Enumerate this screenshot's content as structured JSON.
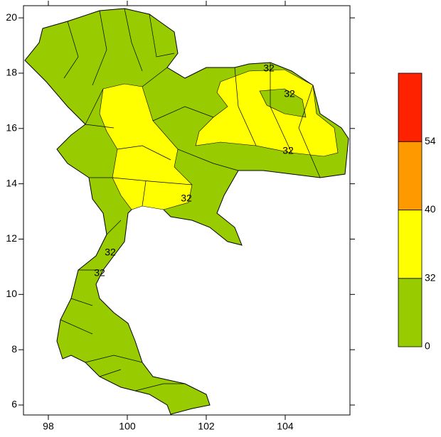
{
  "map": {
    "xlim": [
      97.37,
      105.64
    ],
    "ylim": [
      5.64,
      20.44
    ],
    "xticks": [
      98,
      100,
      102,
      104
    ],
    "yticks": [
      6,
      8,
      10,
      12,
      14,
      16,
      18,
      20
    ],
    "contour_labels": [
      "32",
      "32",
      "32",
      "32",
      "32",
      "32"
    ],
    "colorbar": {
      "levels": [
        0,
        32,
        40,
        54
      ],
      "colors": [
        "#99cc00",
        "#ffff00",
        "#ff9900",
        "#ff2200"
      ]
    }
  }
}
